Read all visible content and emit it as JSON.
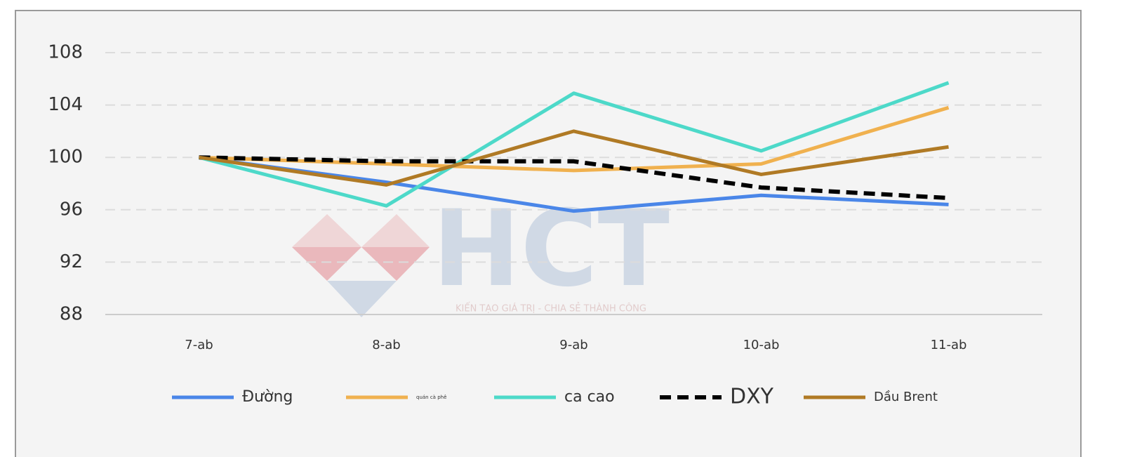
{
  "chart_data": {
    "type": "line",
    "categories": [
      "7-ab",
      "8-ab",
      "9-ab",
      "10-ab",
      "11-ab"
    ],
    "series": [
      {
        "name": "Đường",
        "color": "#4a86e8",
        "values": [
          100,
          98.1,
          95.9,
          97.1,
          96.4
        ]
      },
      {
        "name": "quán cà phê",
        "color": "#f0b14f",
        "values": [
          100,
          99.5,
          99,
          99.5,
          103.8
        ]
      },
      {
        "name": "ca cao",
        "color": "#4dd9c9",
        "values": [
          100,
          96.3,
          104.9,
          100.5,
          105.7
        ]
      },
      {
        "name": "DXY",
        "color": "#000000",
        "dashed": true,
        "values": [
          100,
          99.7,
          99.7,
          97.7,
          96.9
        ]
      },
      {
        "name": "Dầu Brent",
        "color": "#b07a25",
        "values": [
          100,
          97.9,
          102,
          98.7,
          100.8
        ]
      }
    ],
    "ylim": [
      88,
      108
    ],
    "yticks": [
      88,
      92,
      96,
      100,
      104,
      108
    ],
    "grid": true,
    "legend": "bottom"
  },
  "watermark": {
    "logo": "HCT",
    "slogan": "KIẾN TẠO GIÁ TRỊ - CHIA SẺ THÀNH CÔNG"
  }
}
